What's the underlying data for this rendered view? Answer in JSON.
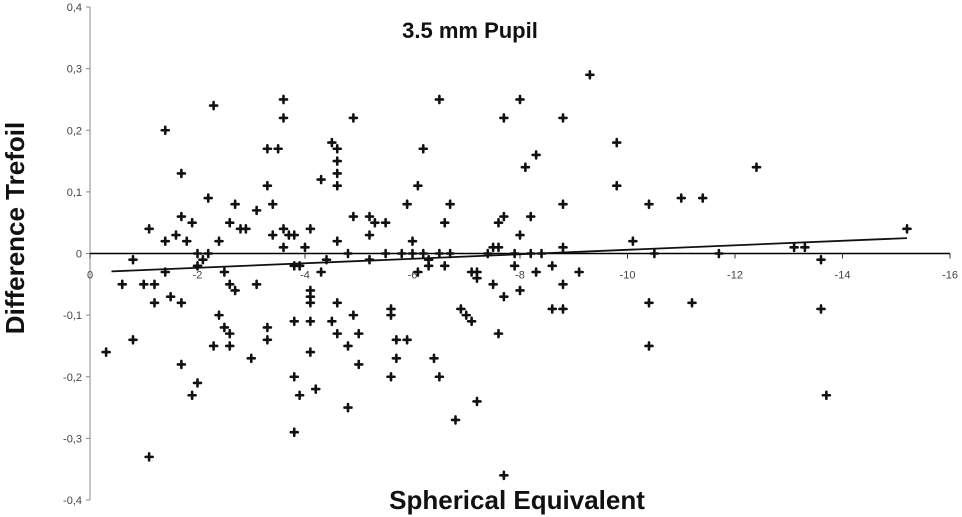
{
  "chart_data": {
    "type": "scatter",
    "title": "3.5 mm Pupil",
    "xlabel": "Spherical Equivalent",
    "ylabel": "Difference Trefoil",
    "xlim": [
      0,
      -16
    ],
    "ylim": [
      -0.4,
      0.4
    ],
    "x_ticks": [
      0,
      -2,
      -4,
      -6,
      -8,
      -10,
      -12,
      -14,
      -16
    ],
    "y_ticks": [
      0.4,
      0.3,
      0.2,
      0.1,
      0,
      -0.1,
      -0.2,
      -0.3,
      -0.4
    ],
    "x_tick_labels": [
      "0",
      "-2",
      "-4",
      "-6",
      "-8",
      "-10",
      "-12",
      "-14",
      "-16"
    ],
    "y_tick_labels": [
      "0,4",
      "0,3",
      "0,2",
      "0,1",
      "0",
      "-0,1",
      "-0,2",
      "-0,3",
      "-0,4"
    ],
    "trendline": {
      "x": [
        -0.4,
        -15.2
      ],
      "y": [
        -0.029,
        0.025
      ]
    },
    "point_color": "#111111",
    "line_color": "#111111",
    "points": [
      {
        "x": -0.3,
        "y": -0.16
      },
      {
        "x": -0.6,
        "y": -0.05
      },
      {
        "x": -0.8,
        "y": -0.01
      },
      {
        "x": -0.8,
        "y": -0.14
      },
      {
        "x": -1.0,
        "y": -0.05
      },
      {
        "x": -1.1,
        "y": 0.04
      },
      {
        "x": -1.2,
        "y": -0.08
      },
      {
        "x": -1.2,
        "y": -0.05
      },
      {
        "x": -1.1,
        "y": -0.33
      },
      {
        "x": -1.4,
        "y": 0.2
      },
      {
        "x": -1.4,
        "y": 0.02
      },
      {
        "x": -1.4,
        "y": -0.03
      },
      {
        "x": -1.5,
        "y": -0.07
      },
      {
        "x": -1.6,
        "y": 0.03
      },
      {
        "x": -1.7,
        "y": 0.13
      },
      {
        "x": -1.7,
        "y": 0.06
      },
      {
        "x": -1.7,
        "y": -0.08
      },
      {
        "x": -1.7,
        "y": -0.18
      },
      {
        "x": -1.8,
        "y": 0.02
      },
      {
        "x": -1.9,
        "y": 0.05
      },
      {
        "x": -1.9,
        "y": -0.23
      },
      {
        "x": -2.0,
        "y": 0.0
      },
      {
        "x": -2.0,
        "y": -0.02
      },
      {
        "x": -2.0,
        "y": -0.21
      },
      {
        "x": -2.1,
        "y": -0.01
      },
      {
        "x": -2.2,
        "y": 0.0
      },
      {
        "x": -2.2,
        "y": 0.09
      },
      {
        "x": -2.3,
        "y": 0.24
      },
      {
        "x": -2.3,
        "y": -0.15
      },
      {
        "x": -2.4,
        "y": 0.02
      },
      {
        "x": -2.4,
        "y": -0.1
      },
      {
        "x": -2.5,
        "y": -0.12
      },
      {
        "x": -2.5,
        "y": -0.03
      },
      {
        "x": -2.6,
        "y": 0.05
      },
      {
        "x": -2.6,
        "y": -0.05
      },
      {
        "x": -2.6,
        "y": -0.13
      },
      {
        "x": -2.6,
        "y": -0.15
      },
      {
        "x": -2.7,
        "y": 0.08
      },
      {
        "x": -2.7,
        "y": -0.06
      },
      {
        "x": -2.8,
        "y": 0.04
      },
      {
        "x": -2.9,
        "y": 0.04
      },
      {
        "x": -3.0,
        "y": -0.17
      },
      {
        "x": -3.1,
        "y": 0.07
      },
      {
        "x": -3.1,
        "y": -0.05
      },
      {
        "x": -3.3,
        "y": 0.17
      },
      {
        "x": -3.3,
        "y": 0.11
      },
      {
        "x": -3.3,
        "y": -0.12
      },
      {
        "x": -3.3,
        "y": -0.14
      },
      {
        "x": -3.4,
        "y": 0.08
      },
      {
        "x": -3.4,
        "y": 0.03
      },
      {
        "x": -3.5,
        "y": 0.17
      },
      {
        "x": -3.6,
        "y": 0.25
      },
      {
        "x": -3.6,
        "y": 0.22
      },
      {
        "x": -3.6,
        "y": 0.04
      },
      {
        "x": -3.6,
        "y": 0.01
      },
      {
        "x": -3.7,
        "y": 0.03
      },
      {
        "x": -3.8,
        "y": 0.03
      },
      {
        "x": -3.8,
        "y": -0.02
      },
      {
        "x": -3.8,
        "y": -0.11
      },
      {
        "x": -3.8,
        "y": -0.2
      },
      {
        "x": -3.8,
        "y": -0.29
      },
      {
        "x": -3.9,
        "y": -0.02
      },
      {
        "x": -3.9,
        "y": -0.23
      },
      {
        "x": -4.0,
        "y": 0.01
      },
      {
        "x": -4.1,
        "y": 0.04
      },
      {
        "x": -4.1,
        "y": -0.06
      },
      {
        "x": -4.1,
        "y": -0.07
      },
      {
        "x": -4.1,
        "y": -0.08
      },
      {
        "x": -4.1,
        "y": -0.11
      },
      {
        "x": -4.1,
        "y": -0.16
      },
      {
        "x": -4.2,
        "y": -0.22
      },
      {
        "x": -4.3,
        "y": 0.12
      },
      {
        "x": -4.3,
        "y": -0.03
      },
      {
        "x": -4.4,
        "y": -0.01
      },
      {
        "x": -4.5,
        "y": 0.18
      },
      {
        "x": -4.5,
        "y": -0.11
      },
      {
        "x": -4.6,
        "y": 0.17
      },
      {
        "x": -4.6,
        "y": 0.15
      },
      {
        "x": -4.6,
        "y": 0.13
      },
      {
        "x": -4.6,
        "y": 0.11
      },
      {
        "x": -4.6,
        "y": 0.02
      },
      {
        "x": -4.6,
        "y": -0.08
      },
      {
        "x": -4.6,
        "y": -0.13
      },
      {
        "x": -4.8,
        "y": 0.0
      },
      {
        "x": -4.8,
        "y": -0.15
      },
      {
        "x": -4.8,
        "y": -0.25
      },
      {
        "x": -4.9,
        "y": 0.22
      },
      {
        "x": -4.9,
        "y": 0.06
      },
      {
        "x": -4.9,
        "y": -0.1
      },
      {
        "x": -5.0,
        "y": -0.13
      },
      {
        "x": -5.0,
        "y": -0.18
      },
      {
        "x": -5.2,
        "y": 0.06
      },
      {
        "x": -5.2,
        "y": 0.03
      },
      {
        "x": -5.2,
        "y": -0.01
      },
      {
        "x": -5.3,
        "y": 0.05
      },
      {
        "x": -5.5,
        "y": 0.05
      },
      {
        "x": -5.5,
        "y": 0.0
      },
      {
        "x": -5.6,
        "y": -0.09
      },
      {
        "x": -5.6,
        "y": -0.1
      },
      {
        "x": -5.6,
        "y": -0.2
      },
      {
        "x": -5.7,
        "y": -0.14
      },
      {
        "x": -5.7,
        "y": -0.17
      },
      {
        "x": -5.8,
        "y": 0.0
      },
      {
        "x": -5.9,
        "y": 0.08
      },
      {
        "x": -5.9,
        "y": -0.14
      },
      {
        "x": -6.0,
        "y": 0.02
      },
      {
        "x": -6.0,
        "y": 0.0
      },
      {
        "x": -6.1,
        "y": 0.11
      },
      {
        "x": -6.1,
        "y": -0.03
      },
      {
        "x": -6.2,
        "y": 0.17
      },
      {
        "x": -6.2,
        "y": 0.0
      },
      {
        "x": -6.3,
        "y": -0.01
      },
      {
        "x": -6.3,
        "y": -0.02
      },
      {
        "x": -6.4,
        "y": -0.17
      },
      {
        "x": -6.5,
        "y": 0.25
      },
      {
        "x": -6.5,
        "y": 0.0
      },
      {
        "x": -6.5,
        "y": -0.2
      },
      {
        "x": -6.6,
        "y": 0.05
      },
      {
        "x": -6.6,
        "y": -0.02
      },
      {
        "x": -6.7,
        "y": 0.08
      },
      {
        "x": -6.7,
        "y": 0.0
      },
      {
        "x": -6.8,
        "y": -0.27
      },
      {
        "x": -6.9,
        "y": -0.09
      },
      {
        "x": -7.0,
        "y": -0.1
      },
      {
        "x": -7.1,
        "y": -0.03
      },
      {
        "x": -7.1,
        "y": -0.11
      },
      {
        "x": -7.2,
        "y": -0.03
      },
      {
        "x": -7.2,
        "y": -0.04
      },
      {
        "x": -7.2,
        "y": -0.24
      },
      {
        "x": -7.4,
        "y": 0.0
      },
      {
        "x": -7.5,
        "y": 0.01
      },
      {
        "x": -7.5,
        "y": -0.05
      },
      {
        "x": -7.6,
        "y": 0.05
      },
      {
        "x": -7.6,
        "y": -0.13
      },
      {
        "x": -7.6,
        "y": 0.01
      },
      {
        "x": -7.7,
        "y": 0.22
      },
      {
        "x": -7.7,
        "y": 0.06
      },
      {
        "x": -7.7,
        "y": -0.07
      },
      {
        "x": -7.7,
        "y": -0.36
      },
      {
        "x": -7.9,
        "y": 0.0
      },
      {
        "x": -7.9,
        "y": -0.02
      },
      {
        "x": -8.0,
        "y": 0.25
      },
      {
        "x": -8.0,
        "y": 0.03
      },
      {
        "x": -8.0,
        "y": -0.06
      },
      {
        "x": -8.1,
        "y": 0.14
      },
      {
        "x": -8.2,
        "y": 0.06
      },
      {
        "x": -8.2,
        "y": 0.0
      },
      {
        "x": -8.3,
        "y": 0.16
      },
      {
        "x": -8.3,
        "y": -0.03
      },
      {
        "x": -8.4,
        "y": 0.0
      },
      {
        "x": -8.6,
        "y": -0.02
      },
      {
        "x": -8.6,
        "y": -0.09
      },
      {
        "x": -8.8,
        "y": 0.22
      },
      {
        "x": -8.8,
        "y": 0.08
      },
      {
        "x": -8.8,
        "y": 0.01
      },
      {
        "x": -8.8,
        "y": -0.05
      },
      {
        "x": -8.8,
        "y": -0.09
      },
      {
        "x": -9.1,
        "y": -0.03
      },
      {
        "x": -9.3,
        "y": 0.29
      },
      {
        "x": -9.8,
        "y": 0.18
      },
      {
        "x": -9.8,
        "y": 0.11
      },
      {
        "x": -10.1,
        "y": 0.02
      },
      {
        "x": -10.4,
        "y": 0.08
      },
      {
        "x": -10.4,
        "y": -0.08
      },
      {
        "x": -10.4,
        "y": -0.15
      },
      {
        "x": -10.5,
        "y": 0.0
      },
      {
        "x": -11.0,
        "y": 0.09
      },
      {
        "x": -11.2,
        "y": -0.08
      },
      {
        "x": -11.4,
        "y": 0.09
      },
      {
        "x": -11.7,
        "y": 0.0
      },
      {
        "x": -12.4,
        "y": 0.14
      },
      {
        "x": -13.1,
        "y": 0.01
      },
      {
        "x": -13.3,
        "y": 0.01
      },
      {
        "x": -13.6,
        "y": -0.01
      },
      {
        "x": -13.6,
        "y": -0.09
      },
      {
        "x": -13.7,
        "y": -0.23
      },
      {
        "x": -15.2,
        "y": 0.04
      }
    ]
  }
}
